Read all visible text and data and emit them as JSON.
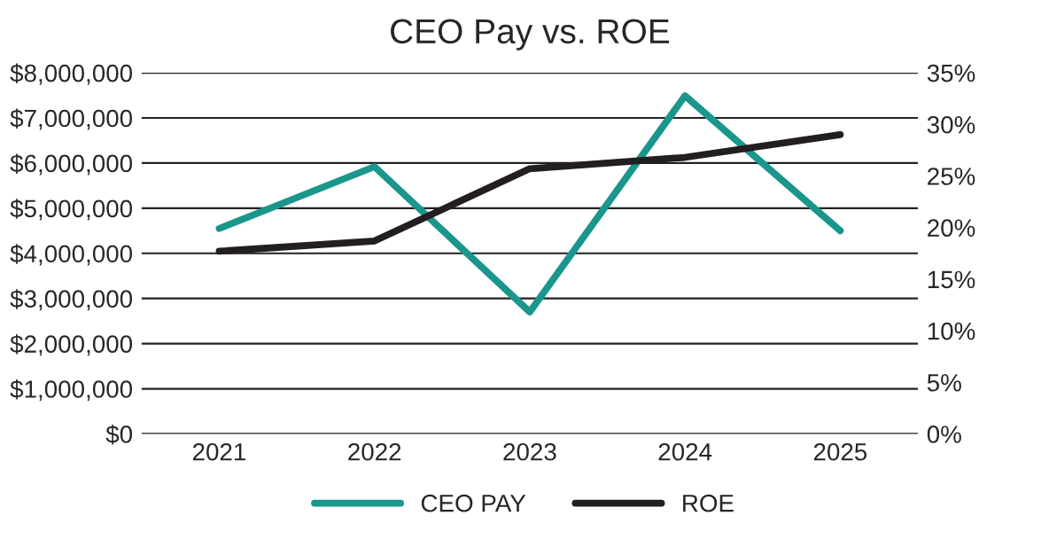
{
  "chart_data": {
    "type": "line",
    "title": "CEO Pay vs. ROE",
    "categories": [
      "2021",
      "2022",
      "2023",
      "2024",
      "2025"
    ],
    "series": [
      {
        "name": "CEO PAY",
        "color": "#1a968c",
        "values": [
          4550000,
          5920000,
          2700000,
          7490000,
          4500000
        ]
      },
      {
        "name": "ROE",
        "color": "#231f20",
        "axis": "y2",
        "values": [
          17.7,
          18.7,
          25.7,
          26.8,
          29.0
        ]
      }
    ],
    "ylim": [
      0,
      8000000
    ],
    "yticks": [
      {
        "value": 0,
        "label": "$0"
      },
      {
        "value": 1000000,
        "label": "$1,000,000"
      },
      {
        "value": 2000000,
        "label": "$2,000,000"
      },
      {
        "value": 3000000,
        "label": "$3,000,000"
      },
      {
        "value": 4000000,
        "label": "$4,000,000"
      },
      {
        "value": 5000000,
        "label": "$5,000,000"
      },
      {
        "value": 6000000,
        "label": "$6,000,000"
      },
      {
        "value": 7000000,
        "label": "$7,000,000"
      },
      {
        "value": 8000000,
        "label": "$8,000,000"
      }
    ],
    "y2lim": [
      0,
      35
    ],
    "y2ticks": [
      {
        "value": 0,
        "label": "0%"
      },
      {
        "value": 5,
        "label": "5%"
      },
      {
        "value": 10,
        "label": "10%"
      },
      {
        "value": 15,
        "label": "15%"
      },
      {
        "value": 20,
        "label": "20%"
      },
      {
        "value": 25,
        "label": "25%"
      },
      {
        "value": 30,
        "label": "30%"
      },
      {
        "value": 35,
        "label": "35%"
      }
    ],
    "grid": "y",
    "legend": "bottom",
    "marker": "none",
    "line_style": "solid"
  }
}
